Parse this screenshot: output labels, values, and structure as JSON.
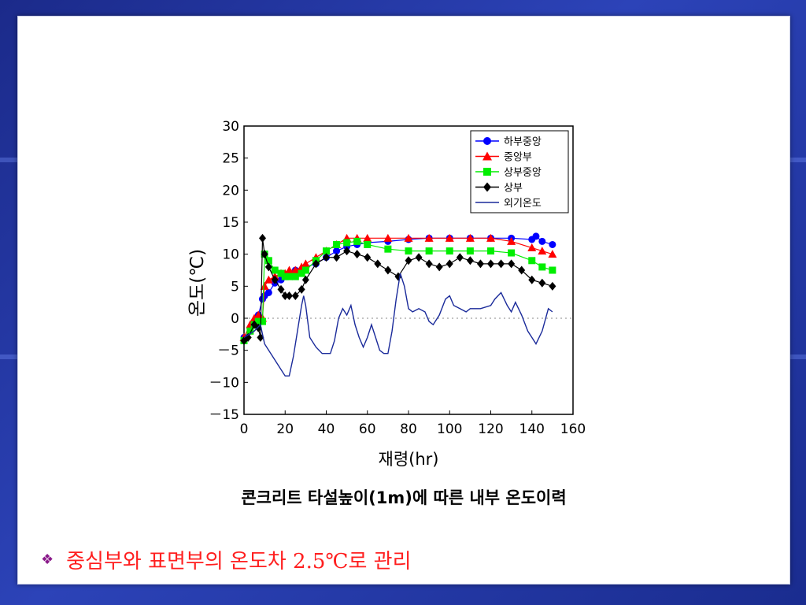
{
  "caption": "콘크리트 타설높이(1m)에 따른 내부 온도이력",
  "bullet": {
    "icon": "diamond-bullet-icon",
    "text": "중심부와 표면부의 온도차 2.5℃로 관리"
  },
  "chart_data": {
    "type": "line",
    "xlabel": "재령(hr)",
    "ylabel": "온도(℃)",
    "xlim": [
      0,
      160
    ],
    "ylim": [
      -15,
      30
    ],
    "xticks": [
      0,
      20,
      40,
      60,
      80,
      100,
      120,
      140,
      160
    ],
    "yticks": [
      30,
      25,
      20,
      15,
      10,
      5,
      0,
      -5,
      -10,
      -15
    ],
    "ytick_labels": [
      "30",
      "25",
      "20",
      "15",
      "10",
      "5",
      "0",
      "－5",
      "－10",
      "－15"
    ],
    "grid": false,
    "zero_line": "dotted",
    "legend_position": "top-right",
    "series": [
      {
        "name": "하부중앙",
        "color": "#0000ff",
        "marker": "circle",
        "x": [
          0,
          3,
          5,
          7,
          9,
          10,
          12,
          15,
          18,
          20,
          22,
          25,
          28,
          30,
          35,
          40,
          45,
          50,
          55,
          60,
          70,
          80,
          90,
          100,
          110,
          120,
          130,
          140,
          142,
          145,
          150
        ],
        "y": [
          -3,
          -2,
          -0.5,
          0.5,
          3,
          3.5,
          4,
          5.5,
          6,
          6.5,
          7,
          7.5,
          7.5,
          8,
          8.5,
          9.5,
          10.5,
          11.2,
          11.5,
          11.8,
          12,
          12.3,
          12.5,
          12.5,
          12.5,
          12.5,
          12.5,
          12.3,
          12.8,
          12,
          11.5
        ]
      },
      {
        "name": "중앙부",
        "color": "#ff0000",
        "marker": "triangle",
        "x": [
          0,
          3,
          5,
          7,
          9,
          10,
          12,
          15,
          18,
          20,
          22,
          25,
          28,
          30,
          35,
          40,
          45,
          50,
          55,
          60,
          70,
          80,
          90,
          100,
          110,
          120,
          130,
          140,
          145,
          150
        ],
        "y": [
          -3,
          -1,
          0,
          0.5,
          0,
          5,
          6,
          6.5,
          7,
          7,
          7.5,
          7.5,
          8,
          8.5,
          9.5,
          10.5,
          11.5,
          12.5,
          12.5,
          12.5,
          12.5,
          12.5,
          12.5,
          12.5,
          12.5,
          12.5,
          12,
          11,
          10.5,
          10
        ]
      },
      {
        "name": "상부중앙",
        "color": "#00ee00",
        "marker": "square",
        "x": [
          0,
          3,
          5,
          7,
          9,
          10,
          12,
          15,
          18,
          20,
          22,
          25,
          28,
          30,
          35,
          40,
          45,
          50,
          55,
          60,
          70,
          80,
          90,
          100,
          110,
          120,
          130,
          140,
          145,
          150
        ],
        "y": [
          -3.5,
          -2,
          -1,
          -0.5,
          -0.5,
          10,
          9,
          7.5,
          7,
          6.5,
          6.5,
          6.5,
          7,
          7.5,
          9,
          10.5,
          11.5,
          11.8,
          12,
          11.5,
          10.8,
          10.5,
          10.5,
          10.5,
          10.5,
          10.5,
          10.2,
          9,
          8,
          7.5
        ]
      },
      {
        "name": "상부",
        "color": "#000000",
        "marker": "diamond",
        "x": [
          0,
          2,
          5,
          7,
          8,
          9,
          10,
          12,
          15,
          18,
          20,
          22,
          25,
          28,
          30,
          35,
          40,
          45,
          50,
          55,
          60,
          65,
          70,
          75,
          80,
          85,
          90,
          95,
          100,
          105,
          110,
          115,
          120,
          125,
          130,
          135,
          140,
          145,
          150
        ],
        "y": [
          -3.5,
          -3,
          -1,
          -1.5,
          -3,
          12.5,
          10,
          8,
          6,
          4.5,
          3.5,
          3.5,
          3.5,
          4.5,
          6,
          8.5,
          9.5,
          9.5,
          10.5,
          10,
          9.5,
          8.5,
          7.5,
          6.5,
          9,
          9.5,
          8.5,
          8,
          8.5,
          9.5,
          9,
          8.5,
          8.5,
          8.5,
          8.5,
          7.5,
          6,
          5.5,
          5
        ]
      },
      {
        "name": "외기온도",
        "color": "#1a2a9a",
        "marker": "none",
        "x": [
          0,
          5,
          8,
          10,
          12,
          15,
          18,
          20,
          22,
          24,
          26,
          28,
          29,
          30,
          32,
          35,
          38,
          40,
          42,
          44,
          46,
          48,
          50,
          52,
          54,
          56,
          58,
          60,
          62,
          64,
          66,
          68,
          70,
          72,
          74,
          76,
          78,
          80,
          82,
          85,
          88,
          90,
          92,
          95,
          98,
          100,
          102,
          105,
          108,
          110,
          115,
          120,
          122,
          125,
          128,
          130,
          132,
          135,
          138,
          140,
          142,
          145,
          148,
          150
        ],
        "y": [
          -3,
          -2,
          -1,
          -4,
          -5,
          -6.5,
          -8,
          -9,
          -9,
          -6,
          -2,
          2,
          3.5,
          2,
          -3,
          -4.5,
          -5.5,
          -5.5,
          -5.5,
          -3.5,
          0,
          1.5,
          0.5,
          2,
          -1,
          -3,
          -4.5,
          -3,
          -1,
          -3,
          -5,
          -5.5,
          -5.5,
          -2,
          3,
          7,
          5,
          1.5,
          1,
          1.5,
          1,
          -0.5,
          -1,
          0.5,
          3,
          3.5,
          2,
          1.5,
          1,
          1.5,
          1.5,
          2,
          3,
          4,
          2,
          1,
          2.5,
          0.5,
          -2,
          -3,
          -4,
          -2,
          1.5,
          1
        ]
      }
    ]
  }
}
